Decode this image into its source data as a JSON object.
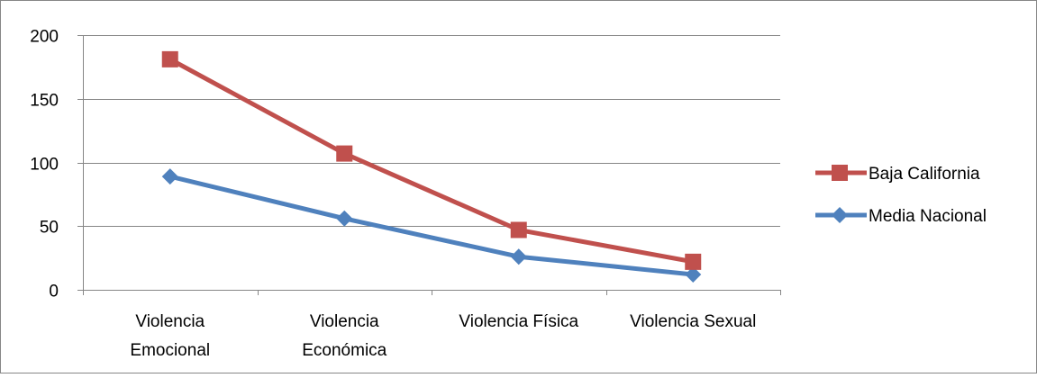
{
  "chart_data": {
    "type": "line",
    "categories": [
      [
        "Violencia",
        "Emocional"
      ],
      [
        "Violencia",
        "Económica"
      ],
      [
        "Violencia Física"
      ],
      [
        "Violencia Sexual"
      ]
    ],
    "series": [
      {
        "name": "Baja California",
        "values": [
          181,
          107,
          47,
          22
        ],
        "color": "#c0504d",
        "marker": "square"
      },
      {
        "name": "Media Nacional",
        "values": [
          89,
          56,
          26,
          12
        ],
        "color": "#4f81bd",
        "marker": "diamond"
      }
    ],
    "y_ticks": [
      "0",
      "50",
      "100",
      "150",
      "200"
    ],
    "ylim": [
      0,
      200
    ],
    "grid": true,
    "legend_position": "right"
  }
}
